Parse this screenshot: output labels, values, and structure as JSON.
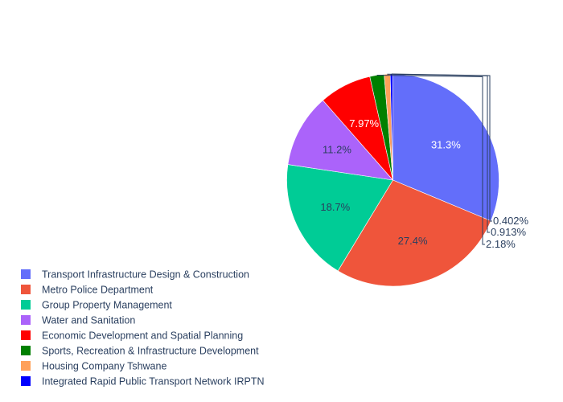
{
  "chart_data": {
    "type": "pie",
    "title": "",
    "legend_position": "bottom-left",
    "label_format": "percent",
    "direction": "clockwise",
    "start_angle": "top",
    "sort": "descending",
    "slices": [
      {
        "label": "Transport Infrastructure Design & Construction",
        "percent": 31.3,
        "percent_text": "31.3%",
        "color": "#636efa",
        "label_placement": "inside",
        "text_color": "#ffffff"
      },
      {
        "label": "Metro Police Department",
        "percent": 27.4,
        "percent_text": "27.4%",
        "color": "#ef553b",
        "label_placement": "inside",
        "text_color": "#2a3f5f"
      },
      {
        "label": "Group Property Management",
        "percent": 18.7,
        "percent_text": "18.7%",
        "color": "#00cc96",
        "label_placement": "inside",
        "text_color": "#2a3f5f"
      },
      {
        "label": "Water and Sanitation",
        "percent": 11.2,
        "percent_text": "11.2%",
        "color": "#ab63fa",
        "label_placement": "inside",
        "text_color": "#2a3f5f"
      },
      {
        "label": "Economic Development and Spatial Planning",
        "percent": 7.97,
        "percent_text": "7.97%",
        "color": "#ff0000",
        "label_placement": "inside",
        "text_color": "#ffffff"
      },
      {
        "label": "Sports, Recreation & Infrastructure Development",
        "percent": 2.18,
        "percent_text": "2.18%",
        "color": "#008000",
        "label_placement": "outside",
        "text_color": "#2a3f5f"
      },
      {
        "label": "Housing Company Tshwane",
        "percent": 0.913,
        "percent_text": "0.913%",
        "color": "#ffa15a",
        "label_placement": "outside",
        "text_color": "#2a3f5f"
      },
      {
        "label": "Integrated Rapid Public Transport Network IRPTN",
        "percent": 0.402,
        "percent_text": "0.402%",
        "color": "#0000ff",
        "label_placement": "outside",
        "text_color": "#2a3f5f"
      }
    ]
  }
}
